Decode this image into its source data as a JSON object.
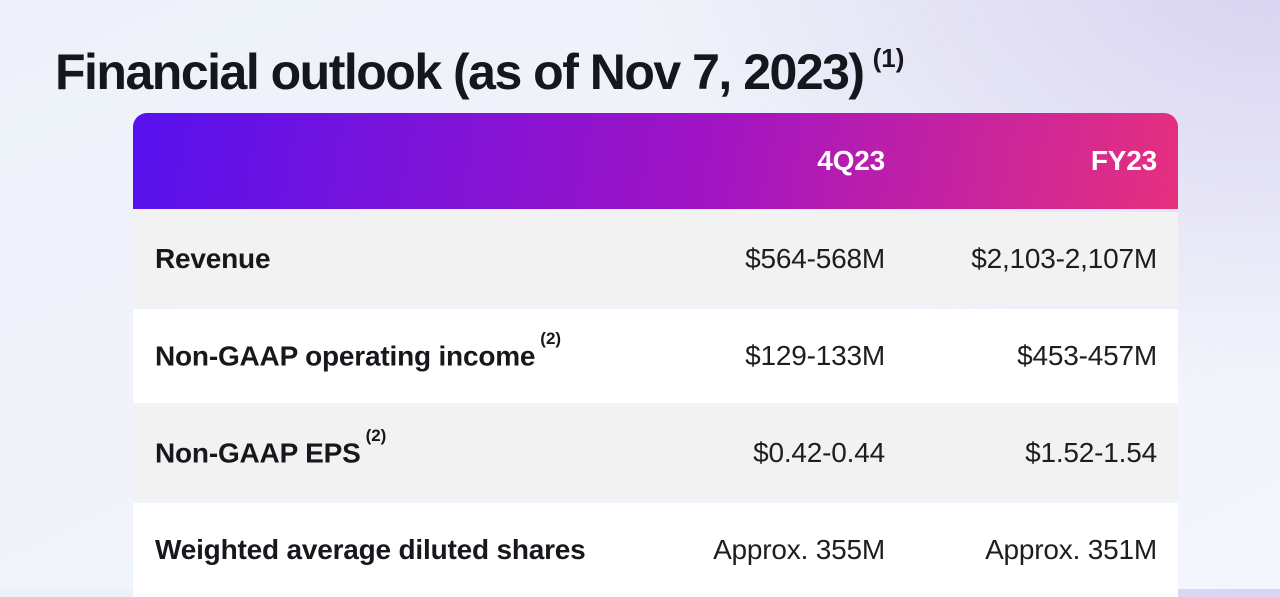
{
  "slide": {
    "title": "Financial outlook (as of Nov 7, 2023)",
    "title_footnote_marker": "(1)"
  },
  "table": {
    "header": {
      "col_q4": "4Q23",
      "col_fy": "FY23"
    },
    "rows": [
      {
        "label": "Revenue",
        "footnote_marker": "",
        "q4": "$564-568M",
        "fy": "$2,103-2,107M"
      },
      {
        "label": "Non-GAAP operating income",
        "footnote_marker": "(2)",
        "q4": "$129-133M",
        "fy": "$453-457M"
      },
      {
        "label": "Non-GAAP EPS",
        "footnote_marker": "(2)",
        "q4": "$0.42-0.44",
        "fy": "$1.52-1.54"
      },
      {
        "label": "Weighted average diluted shares",
        "footnote_marker": "",
        "q4": "Approx. 355M",
        "fy": "Approx. 351M"
      }
    ],
    "colors": {
      "header_gradient_start": "#5712ee",
      "header_gradient_mid": "#a114c4",
      "header_gradient_end": "#e6307f",
      "header_text": "#ffffff",
      "row_alt_background": "#f2f2f3",
      "row_background": "#ffffff",
      "text": "#17181c"
    }
  }
}
